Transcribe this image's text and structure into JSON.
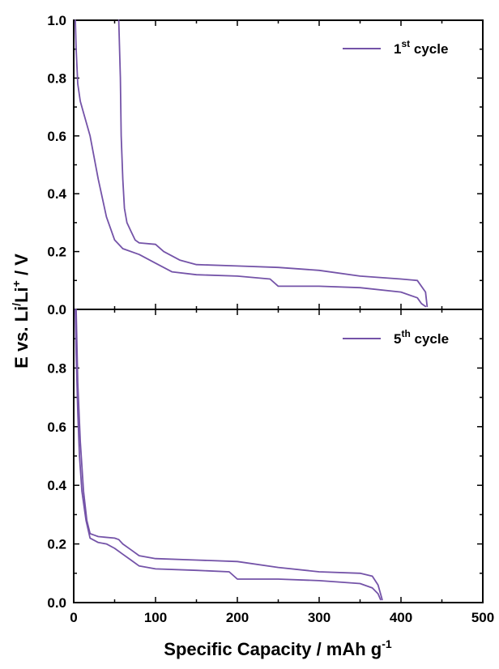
{
  "chart_data": [
    {
      "type": "line",
      "panel": "top",
      "xlim": [
        0,
        500
      ],
      "ylim": [
        0,
        1.0
      ],
      "yticks": [
        "0.0",
        "0.2",
        "0.4",
        "0.6",
        "0.8",
        "1.0"
      ],
      "yticks_values": [
        0,
        0.2,
        0.4,
        0.6,
        0.8,
        1.0
      ],
      "legend": {
        "placement": "top-right",
        "label_main": "1",
        "label_sup": "st",
        "label_rest": " cycle"
      },
      "color": "#7453a8",
      "series": [
        {
          "name": "1st cycle",
          "x": [
            2,
            3,
            5,
            8,
            12,
            20,
            30,
            40,
            50,
            60,
            80,
            100,
            120,
            150,
            200,
            240,
            250,
            300,
            350,
            400,
            420,
            425,
            430
          ],
          "y": [
            1.0,
            0.9,
            0.78,
            0.72,
            0.68,
            0.6,
            0.45,
            0.32,
            0.24,
            0.21,
            0.19,
            0.16,
            0.13,
            0.12,
            0.115,
            0.105,
            0.08,
            0.08,
            0.075,
            0.06,
            0.04,
            0.02,
            0.01
          ]
        },
        {
          "name": "1st cycle",
          "x": [
            55,
            57,
            58,
            60,
            62,
            65,
            70,
            75,
            80,
            100,
            110,
            130,
            150,
            200,
            250,
            300,
            350,
            400,
            420,
            430,
            432
          ],
          "y": [
            1.0,
            0.8,
            0.6,
            0.45,
            0.35,
            0.3,
            0.27,
            0.24,
            0.23,
            0.225,
            0.2,
            0.17,
            0.155,
            0.15,
            0.145,
            0.135,
            0.115,
            0.105,
            0.1,
            0.06,
            0.01
          ]
        }
      ]
    },
    {
      "type": "line",
      "panel": "bottom",
      "xlim": [
        0,
        500
      ],
      "ylim": [
        0,
        1.0
      ],
      "yticks": [
        "0.0",
        "0.2",
        "0.4",
        "0.6",
        "0.8"
      ],
      "yticks_values": [
        0,
        0.2,
        0.4,
        0.6,
        0.8
      ],
      "xticks": [
        "0",
        "100",
        "200",
        "300",
        "400",
        "500"
      ],
      "xticks_values": [
        0,
        100,
        200,
        300,
        400,
        500
      ],
      "legend": {
        "placement": "top-right",
        "label_main": "5",
        "label_sup": "th",
        "label_rest": " cycle"
      },
      "color": "#7453a8",
      "series": [
        {
          "name": "5th cycle",
          "x": [
            2,
            3,
            5,
            7,
            10,
            15,
            20,
            30,
            40,
            50,
            60,
            70,
            80,
            100,
            150,
            190,
            200,
            250,
            300,
            350,
            365,
            372,
            375
          ],
          "y": [
            1.0,
            0.85,
            0.65,
            0.5,
            0.38,
            0.28,
            0.22,
            0.205,
            0.2,
            0.185,
            0.165,
            0.145,
            0.125,
            0.115,
            0.11,
            0.105,
            0.08,
            0.08,
            0.075,
            0.065,
            0.05,
            0.03,
            0.01
          ]
        },
        {
          "name": "5th cycle",
          "x": [
            3,
            5,
            8,
            12,
            16,
            20,
            25,
            30,
            50,
            55,
            60,
            70,
            80,
            100,
            150,
            200,
            250,
            300,
            350,
            365,
            372,
            377
          ],
          "y": [
            1.0,
            0.75,
            0.55,
            0.38,
            0.28,
            0.235,
            0.23,
            0.225,
            0.22,
            0.215,
            0.2,
            0.18,
            0.16,
            0.15,
            0.145,
            0.14,
            0.12,
            0.105,
            0.1,
            0.09,
            0.06,
            0.01
          ]
        }
      ]
    }
  ],
  "axes": {
    "ylabel_pre": "E vs. Li",
    "ylabel_sup1": "/",
    "ylabel_mid": "Li",
    "ylabel_sup2": "+",
    "ylabel_post": " / V",
    "xlabel_main": "Specific Capacity / mAh g",
    "xlabel_sup": "-1"
  }
}
